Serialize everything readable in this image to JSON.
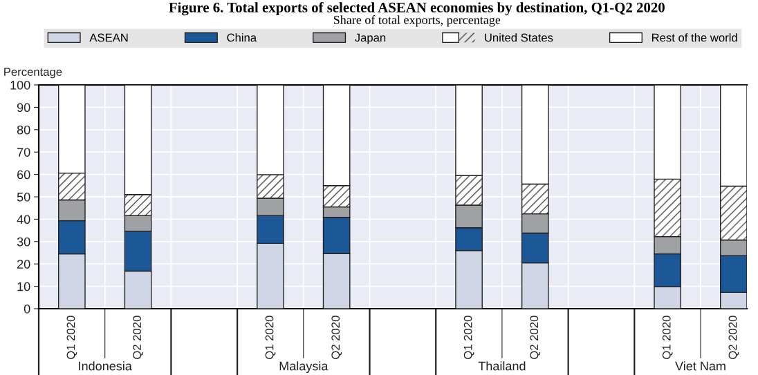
{
  "chart_data": {
    "type": "bar",
    "stacked": true,
    "title": "Figure 6. Total exports of selected ASEAN economies by destination, Q1-Q2 2020",
    "subtitle": "Share of total exports, percentage",
    "ylabel": "Percentage",
    "categories": [
      "Q1 2020",
      "Q2 2020",
      null,
      "Q1 2020",
      "Q2 2020",
      null,
      "Q1 2020",
      "Q2 2020",
      null,
      "Q1 2020",
      "Q2 2020"
    ],
    "series": [
      {
        "name": "ASEAN",
        "color": "#d0d6e6",
        "values": [
          24.5,
          16.8,
          null,
          29.2,
          24.6,
          null,
          26.0,
          20.5,
          null,
          9.8,
          7.3
        ]
      },
      {
        "name": "China",
        "color": "#1c5797",
        "values": [
          14.8,
          17.8,
          null,
          12.4,
          16.2,
          null,
          10.2,
          13.3,
          null,
          14.7,
          16.4
        ]
      },
      {
        "name": "Japan",
        "color": "#a0a1a5",
        "values": [
          9.3,
          7.0,
          null,
          7.8,
          4.7,
          null,
          10.1,
          8.6,
          null,
          7.7,
          7.0
        ]
      },
      {
        "name": "United States",
        "color": "#ffffff",
        "values": [
          12.0,
          9.4,
          null,
          10.5,
          9.5,
          null,
          13.2,
          13.3,
          null,
          25.7,
          24.1
        ]
      },
      {
        "name": "Rest of the world",
        "color": "#ffffff",
        "values": [
          39.4,
          49.0,
          null,
          40.1,
          45.0,
          null,
          40.5,
          44.3,
          null,
          42.1,
          45.2
        ]
      }
    ],
    "annotations": [
      "Indonesia",
      "Malaysia",
      "Thailand",
      "Viet Nam"
    ],
    "ylim": [
      0,
      100
    ],
    "yticks": [
      0,
      10,
      20,
      30,
      40,
      50,
      60,
      70,
      80,
      90,
      100
    ],
    "grid": true,
    "legend": "top"
  }
}
